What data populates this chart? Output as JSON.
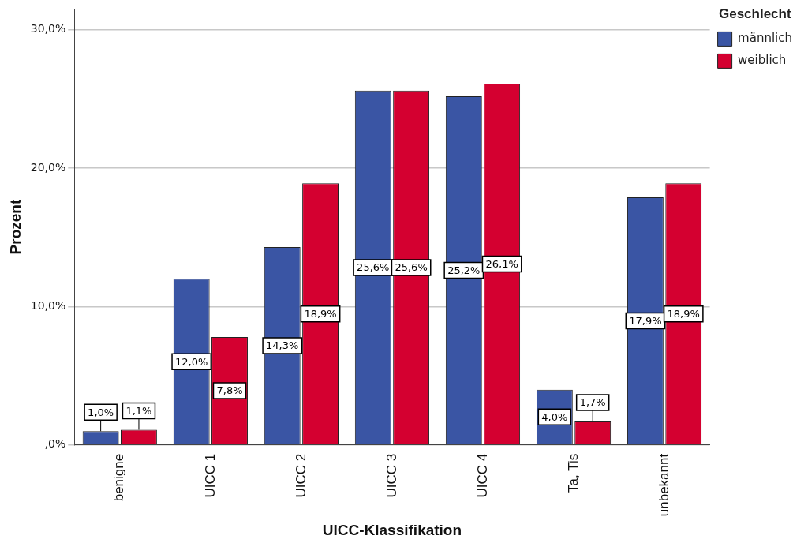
{
  "chart_data": {
    "type": "bar",
    "xlabel": "UICC-Klassifikation",
    "ylabel": "Prozent",
    "legend_title": "Geschlecht",
    "legend": "top right",
    "grid": "y",
    "categories": [
      "benigne",
      "UICC 1",
      "UICC 2",
      "UICC 3",
      "UICC 4",
      "Ta, Tis",
      "unbekannt"
    ],
    "ylim": [
      0,
      31.5
    ],
    "yticks": [
      {
        "value": 0,
        "label": ",0%"
      },
      {
        "value": 10,
        "label": "10,0%"
      },
      {
        "value": 20,
        "label": "20,0%"
      },
      {
        "value": 30,
        "label": "30,0%"
      }
    ],
    "series": [
      {
        "name": "männlich",
        "color": "#3a55a4",
        "values": [
          1.0,
          12.0,
          14.3,
          25.6,
          25.2,
          4.0,
          17.9
        ],
        "value_labels": [
          "1,0%",
          "12,0%",
          "14,3%",
          "25,6%",
          "25,2%",
          "4,0%",
          "17,9%"
        ]
      },
      {
        "name": "weiblich",
        "color": "#d40030",
        "values": [
          1.1,
          7.8,
          18.9,
          25.6,
          26.1,
          1.7,
          18.9
        ],
        "value_labels": [
          "1,1%",
          "7,8%",
          "18,9%",
          "25,6%",
          "26,1%",
          "1,7%",
          "18,9%"
        ]
      }
    ]
  }
}
